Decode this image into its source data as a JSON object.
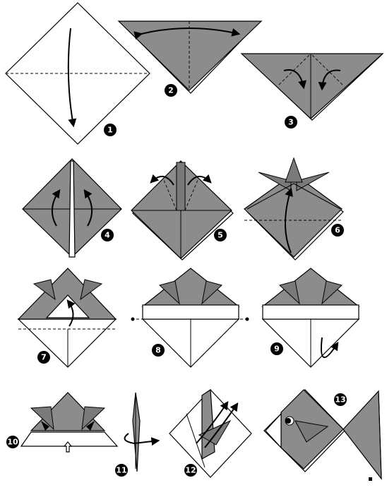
{
  "steps": [
    {
      "label": "1"
    },
    {
      "label": "2"
    },
    {
      "label": "3"
    },
    {
      "label": "4"
    },
    {
      "label": "5"
    },
    {
      "label": "6"
    },
    {
      "label": "7"
    },
    {
      "label": "8"
    },
    {
      "label": "9"
    },
    {
      "label": "10"
    },
    {
      "label": "11"
    },
    {
      "label": "12"
    },
    {
      "label": "13"
    }
  ],
  "colors": {
    "paper_colored": "#8c8c8c",
    "paper_white": "#ffffff",
    "ink": "#000000"
  }
}
